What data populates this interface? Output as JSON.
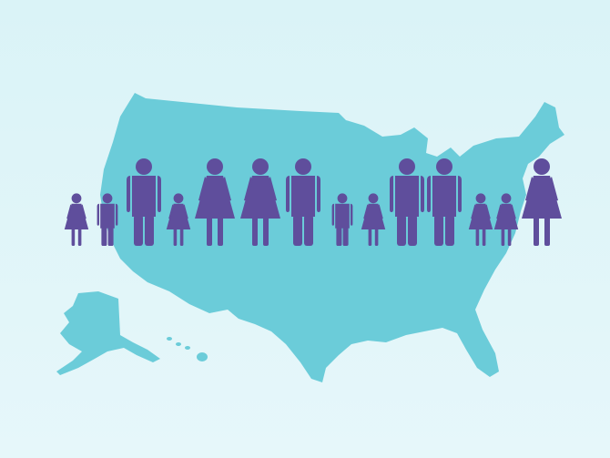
{
  "colors": {
    "background": "#dff4f8",
    "map": "#6bccd9",
    "figures": "#5f4e9c"
  },
  "figures": [
    "girl",
    "boy",
    "man",
    "girl",
    "woman",
    "woman",
    "man",
    "boy",
    "girl",
    "man",
    "man",
    "girl",
    "girl",
    "woman"
  ]
}
